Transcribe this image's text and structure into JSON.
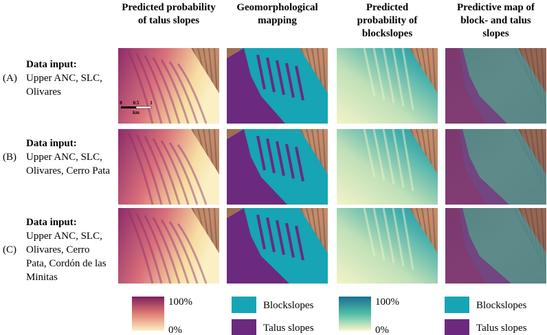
{
  "column_headers": [
    {
      "lines": [
        "Predicted probability",
        "of talus slopes"
      ]
    },
    {
      "lines": [
        "Geomorphological",
        "mapping"
      ]
    },
    {
      "lines": [
        "Predicted",
        "probability of",
        "blockslopes"
      ]
    },
    {
      "lines": [
        "Predictive map of",
        "block- and talus",
        "slopes"
      ]
    }
  ],
  "rows": [
    {
      "label": "(A)",
      "heading": "Data input:",
      "lines": [
        "Upper ANC, SLC,",
        "Olivares"
      ]
    },
    {
      "label": "(B)",
      "heading": "Data input:",
      "lines": [
        "Upper ANC, SLC,",
        "Olivares, Cerro Pata"
      ]
    },
    {
      "label": "(C)",
      "heading": "Data input:",
      "lines": [
        "Upper ANC, SLC,",
        "Olivares, Cerro",
        "Pata, Cordón de las",
        "Minitas"
      ]
    }
  ],
  "scale_bar": {
    "ticks": [
      "0",
      "0.5",
      "1"
    ],
    "unit": "km"
  },
  "legend_talus_probability": {
    "max": "100%",
    "min": "0%"
  },
  "legend_mapping": {
    "items": [
      "Blockslopes",
      "Talus slopes"
    ]
  },
  "legend_blockslope_probability": {
    "max": "100%",
    "min": "0%"
  },
  "legend_predictive": {
    "items": [
      "Blockslopes",
      "Talus slopes"
    ]
  }
}
